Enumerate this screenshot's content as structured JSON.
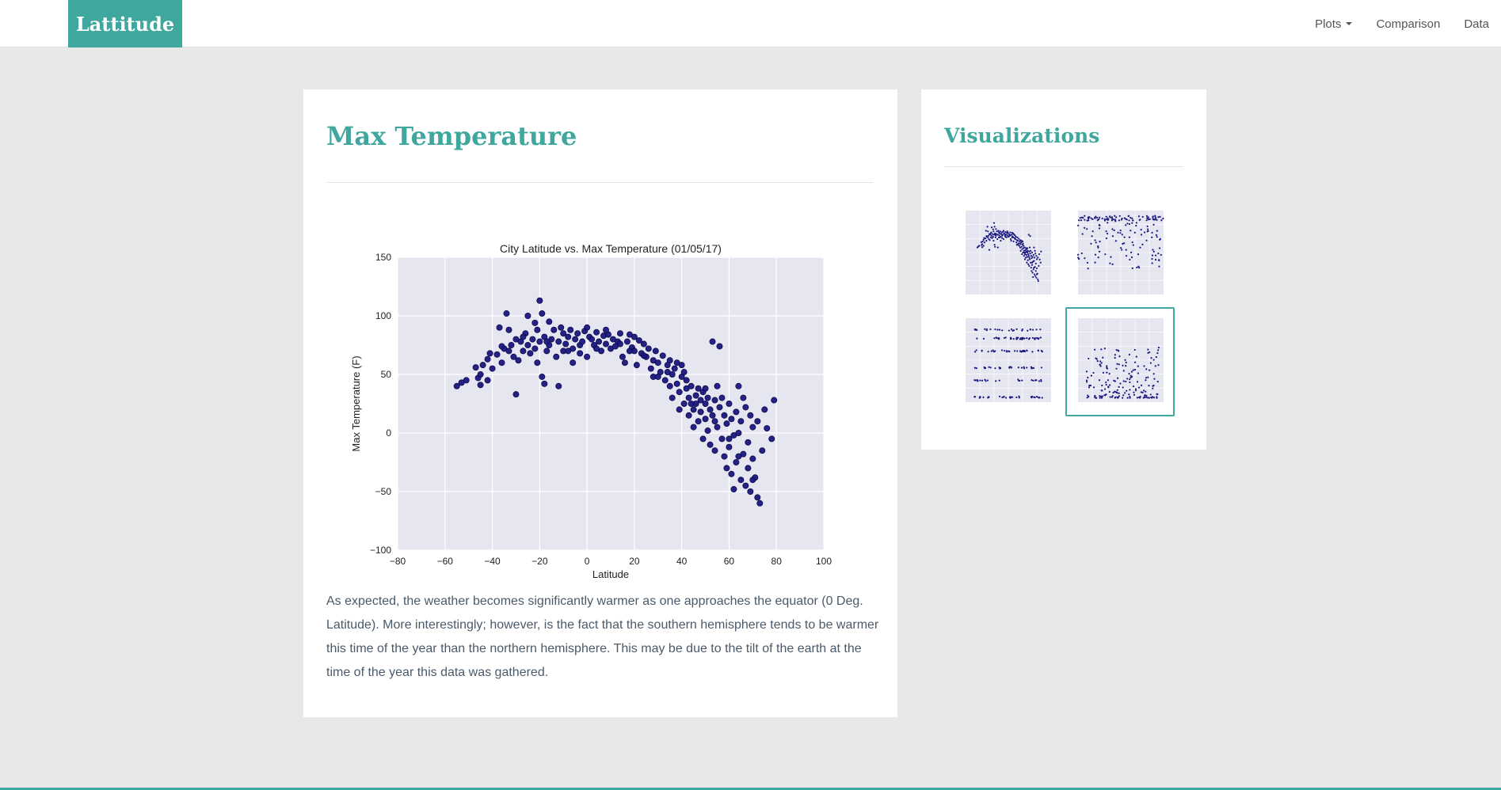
{
  "navbar": {
    "brand": "Lattitude",
    "links": [
      {
        "label": "Plots",
        "has_dropdown": true
      },
      {
        "label": "Comparison"
      },
      {
        "label": "Data"
      }
    ]
  },
  "main": {
    "title": "Max Temperature",
    "description": "As expected, the weather becomes significantly warmer as one approaches the equator (0 Deg. Latitude). More interestingly; however, is the fact that the southern hemisphere tends to be warmer this time of the year than the northern hemisphere. This may be due to the tilt of the earth at the time of the year this data was gathered."
  },
  "sidebar": {
    "title": "Visualizations",
    "thumbnails": [
      {
        "name": "max-temperature",
        "active": false
      },
      {
        "name": "humidity",
        "active": false
      },
      {
        "name": "cloudiness",
        "active": false
      },
      {
        "name": "wind-speed",
        "active": true
      }
    ]
  },
  "colors": {
    "accent": "#3fa79e",
    "plot_background": "#e6e6f0",
    "marker": "#1a1780",
    "marker_edge": "#0d0a4d"
  },
  "chart_data": {
    "type": "scatter",
    "title": "City Latitude vs. Max Temperature (01/05/17)",
    "xlabel": "Latitude",
    "ylabel": "Max Temperature (F)",
    "xlim": [
      -80,
      100
    ],
    "ylim": [
      -100,
      150
    ],
    "xticks": [
      -80,
      -60,
      -40,
      -20,
      0,
      20,
      40,
      60,
      80,
      100
    ],
    "yticks": [
      -100,
      -50,
      0,
      50,
      100,
      150
    ],
    "xtick_labels": [
      "−80",
      "−60",
      "−40",
      "−20",
      "0",
      "20",
      "40",
      "60",
      "80",
      "100"
    ],
    "ytick_labels": [
      "−100",
      "−50",
      "0",
      "50",
      "100",
      "150"
    ],
    "grid": true,
    "legend": false,
    "points": [
      [
        -55,
        40
      ],
      [
        -53,
        43
      ],
      [
        -51,
        45
      ],
      [
        -47,
        56
      ],
      [
        -46,
        47
      ],
      [
        -45,
        41
      ],
      [
        -44,
        58
      ],
      [
        -42,
        63
      ],
      [
        -42,
        45
      ],
      [
        -40,
        55
      ],
      [
        -38,
        67
      ],
      [
        -37,
        90
      ],
      [
        -36,
        60
      ],
      [
        -35,
        72
      ],
      [
        -34,
        102
      ],
      [
        -33,
        70
      ],
      [
        -32,
        75
      ],
      [
        -31,
        65
      ],
      [
        -30,
        33
      ],
      [
        -30,
        80
      ],
      [
        -29,
        62
      ],
      [
        -28,
        78
      ],
      [
        -27,
        70
      ],
      [
        -26,
        85
      ],
      [
        -25,
        100
      ],
      [
        -25,
        75
      ],
      [
        -24,
        68
      ],
      [
        -23,
        80
      ],
      [
        -22,
        72
      ],
      [
        -21,
        88
      ],
      [
        -21,
        60
      ],
      [
        -20,
        113
      ],
      [
        -20,
        78
      ],
      [
        -19,
        102
      ],
      [
        -19,
        48
      ],
      [
        -18,
        42
      ],
      [
        -18,
        82
      ],
      [
        -17,
        70
      ],
      [
        -16,
        95
      ],
      [
        -16,
        75
      ],
      [
        -15,
        80
      ],
      [
        -14,
        88
      ],
      [
        -13,
        65
      ],
      [
        -12,
        78
      ],
      [
        -12,
        40
      ],
      [
        -11,
        90
      ],
      [
        -10,
        85
      ],
      [
        -10,
        70
      ],
      [
        -9,
        76
      ],
      [
        -8,
        82
      ],
      [
        -7,
        88
      ],
      [
        -6,
        72
      ],
      [
        -6,
        60
      ],
      [
        -5,
        80
      ],
      [
        -4,
        85
      ],
      [
        -3,
        75
      ],
      [
        -2,
        78
      ],
      [
        -1,
        87
      ],
      [
        0,
        90
      ],
      [
        0,
        65
      ],
      [
        1,
        82
      ],
      [
        2,
        80
      ],
      [
        3,
        75
      ],
      [
        4,
        86
      ],
      [
        5,
        78
      ],
      [
        6,
        70
      ],
      [
        7,
        83
      ],
      [
        8,
        76
      ],
      [
        9,
        84
      ],
      [
        10,
        72
      ],
      [
        11,
        80
      ],
      [
        12,
        74
      ],
      [
        13,
        78
      ],
      [
        14,
        85
      ],
      [
        15,
        65
      ],
      [
        16,
        60
      ],
      [
        17,
        78
      ],
      [
        18,
        84
      ],
      [
        19,
        73
      ],
      [
        20,
        82
      ],
      [
        20,
        70
      ],
      [
        21,
        58
      ],
      [
        22,
        79
      ],
      [
        23,
        68
      ],
      [
        24,
        76
      ],
      [
        25,
        65
      ],
      [
        26,
        72
      ],
      [
        27,
        55
      ],
      [
        28,
        62
      ],
      [
        28,
        48
      ],
      [
        29,
        70
      ],
      [
        30,
        60
      ],
      [
        31,
        52
      ],
      [
        32,
        66
      ],
      [
        33,
        45
      ],
      [
        34,
        58
      ],
      [
        35,
        40
      ],
      [
        35,
        62
      ],
      [
        36,
        50
      ],
      [
        36,
        30
      ],
      [
        37,
        55
      ],
      [
        38,
        42
      ],
      [
        38,
        60
      ],
      [
        39,
        35
      ],
      [
        39,
        20
      ],
      [
        40,
        48
      ],
      [
        40,
        58
      ],
      [
        41,
        25
      ],
      [
        42,
        38
      ],
      [
        42,
        45
      ],
      [
        43,
        15
      ],
      [
        43,
        30
      ],
      [
        44,
        40
      ],
      [
        45,
        20
      ],
      [
        45,
        5
      ],
      [
        46,
        32
      ],
      [
        46,
        25
      ],
      [
        47,
        38
      ],
      [
        47,
        10
      ],
      [
        48,
        28
      ],
      [
        48,
        18
      ],
      [
        49,
        35
      ],
      [
        49,
        -5
      ],
      [
        50,
        25
      ],
      [
        50,
        12
      ],
      [
        51,
        30
      ],
      [
        51,
        2
      ],
      [
        52,
        20
      ],
      [
        52,
        -10
      ],
      [
        53,
        78
      ],
      [
        53,
        15
      ],
      [
        54,
        28
      ],
      [
        54,
        -15
      ],
      [
        55,
        5
      ],
      [
        55,
        40
      ],
      [
        56,
        22
      ],
      [
        56,
        74
      ],
      [
        57,
        -5
      ],
      [
        57,
        30
      ],
      [
        58,
        15
      ],
      [
        58,
        -20
      ],
      [
        59,
        8
      ],
      [
        59,
        -30
      ],
      [
        60,
        25
      ],
      [
        60,
        -12
      ],
      [
        61,
        -35
      ],
      [
        61,
        12
      ],
      [
        62,
        -2
      ],
      [
        62,
        -48
      ],
      [
        63,
        18
      ],
      [
        63,
        -25
      ],
      [
        64,
        0
      ],
      [
        64,
        40
      ],
      [
        65,
        -40
      ],
      [
        65,
        10
      ],
      [
        66,
        -18
      ],
      [
        66,
        30
      ],
      [
        67,
        -45
      ],
      [
        67,
        22
      ],
      [
        68,
        -8
      ],
      [
        68,
        -30
      ],
      [
        69,
        15
      ],
      [
        69,
        -50
      ],
      [
        70,
        -22
      ],
      [
        70,
        5
      ],
      [
        71,
        -38
      ],
      [
        72,
        -55
      ],
      [
        72,
        10
      ],
      [
        73,
        -60
      ],
      [
        74,
        -15
      ],
      [
        75,
        20
      ],
      [
        76,
        4
      ],
      [
        78,
        -5
      ],
      [
        79,
        28
      ],
      [
        -41,
        68
      ],
      [
        -36,
        74
      ],
      [
        -27,
        82
      ],
      [
        -17,
        78
      ],
      [
        -8,
        70
      ],
      [
        4,
        72
      ],
      [
        14,
        76
      ],
      [
        24,
        66
      ],
      [
        34,
        52
      ],
      [
        44,
        25
      ],
      [
        54,
        10
      ],
      [
        64,
        -20
      ],
      [
        -45,
        50
      ],
      [
        -33,
        88
      ],
      [
        -22,
        94
      ],
      [
        -3,
        68
      ],
      [
        8,
        88
      ],
      [
        18,
        70
      ],
      [
        30,
        48
      ],
      [
        41,
        52
      ],
      [
        50,
        38
      ],
      [
        60,
        -5
      ],
      [
        70,
        -40
      ]
    ]
  }
}
